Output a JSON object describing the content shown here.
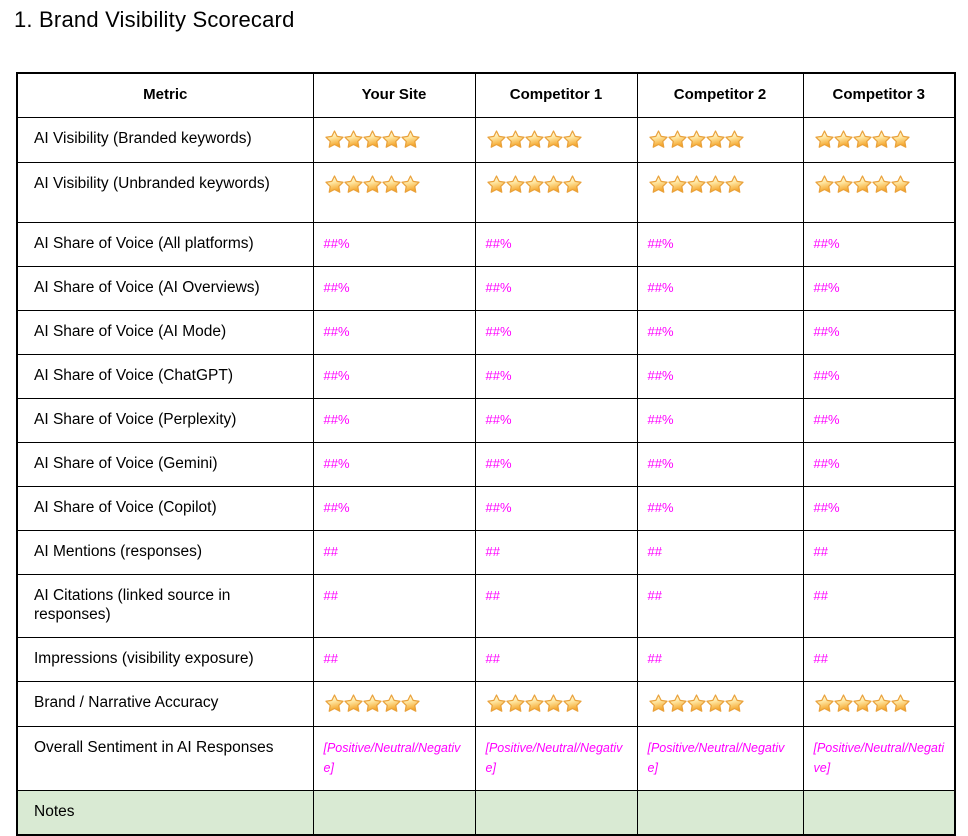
{
  "title": "1. Brand Visibility Scorecard",
  "colors": {
    "value_text": "#ff00ff",
    "notes_row_bg": "#d9ead3",
    "table_border": "#000000",
    "star_fill_top": "#fffdf0",
    "star_fill_mid": "#ffe9a6",
    "star_fill_bottom": "#f4a428",
    "star_outline": "#e9a13b"
  },
  "icons": {
    "star": "⭐"
  },
  "table": {
    "headers": [
      "Metric",
      "Your Site",
      "Competitor 1",
      "Competitor 2",
      "Competitor 3"
    ],
    "rows": [
      {
        "metric": "AI Visibility (Branded keywords)",
        "type": "stars",
        "values": [
          5,
          5,
          5,
          5
        ]
      },
      {
        "metric": "AI Visibility (Unbranded keywords)",
        "type": "stars",
        "values": [
          5,
          5,
          5,
          5
        ],
        "tall": true
      },
      {
        "metric": "AI Share of Voice (All platforms)",
        "type": "value",
        "values": [
          "##%",
          "##%",
          "##%",
          "##%"
        ]
      },
      {
        "metric": "AI Share of Voice (AI Overviews)",
        "type": "value",
        "values": [
          "##%",
          "##%",
          "##%",
          "##%"
        ]
      },
      {
        "metric": "AI Share of Voice (AI Mode)",
        "type": "value",
        "values": [
          "##%",
          "##%",
          "##%",
          "##%"
        ]
      },
      {
        "metric": "AI Share of Voice (ChatGPT)",
        "type": "value",
        "values": [
          "##%",
          "##%",
          "##%",
          "##%"
        ]
      },
      {
        "metric": "AI Share of Voice (Perplexity)",
        "type": "value",
        "values": [
          "##%",
          "##%",
          "##%",
          "##%"
        ]
      },
      {
        "metric": "AI Share of Voice (Gemini)",
        "type": "value",
        "values": [
          "##%",
          "##%",
          "##%",
          "##%"
        ]
      },
      {
        "metric": "AI Share of Voice (Copilot)",
        "type": "value",
        "values": [
          "##%",
          "##%",
          "##%",
          "##%"
        ]
      },
      {
        "metric": "AI Mentions (responses)",
        "type": "value",
        "values": [
          "##",
          "##",
          "##",
          "##"
        ]
      },
      {
        "metric": "AI Citations (linked source in responses)",
        "type": "value",
        "values": [
          "##",
          "##",
          "##",
          "##"
        ],
        "tall": true
      },
      {
        "metric": "Impressions (visibility exposure)",
        "type": "value",
        "values": [
          "##",
          "##",
          "##",
          "##"
        ]
      },
      {
        "metric": "Brand / Narrative Accuracy",
        "type": "stars",
        "values": [
          5,
          5,
          5,
          5
        ]
      },
      {
        "metric": "Overall Sentiment in AI Responses",
        "type": "sentiment",
        "values": [
          "[Positive/Neutral/Negative]",
          "[Positive/Neutral/Negative]",
          "[Positive/Neutral/Negative]",
          "[Positive/Neutral/Negative]"
        ],
        "tall": true
      },
      {
        "metric": "Notes",
        "type": "notes",
        "values": [
          "",
          "",
          "",
          ""
        ]
      }
    ]
  }
}
